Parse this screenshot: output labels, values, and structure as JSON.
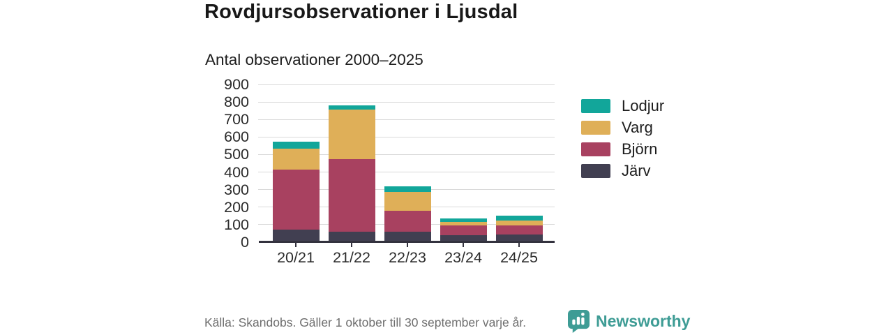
{
  "header": {
    "title": "Rovdjursobservationer i Ljusdal",
    "subtitle": "Antal observationer 2000–2025"
  },
  "chart_data": {
    "type": "bar",
    "stacked": true,
    "title": "Rovdjursobservationer i Ljusdal",
    "subtitle": "Antal observationer 2000–2025",
    "xlabel": "",
    "ylabel": "Antal observationer",
    "categories": [
      "20/21",
      "21/22",
      "22/23",
      "23/24",
      "24/25"
    ],
    "series": [
      {
        "name": "Järv",
        "color": "#413f51",
        "values": [
          70,
          60,
          60,
          40,
          45
        ]
      },
      {
        "name": "Björn",
        "color": "#a84160",
        "values": [
          345,
          415,
          120,
          55,
          50
        ]
      },
      {
        "name": "Varg",
        "color": "#dfaf58",
        "values": [
          120,
          280,
          105,
          20,
          28
        ]
      },
      {
        "name": "Lodjur",
        "color": "#12a69a",
        "values": [
          40,
          25,
          35,
          20,
          27
        ]
      }
    ],
    "totals": [
      575,
      780,
      320,
      135,
      150
    ],
    "ylim": [
      0,
      900
    ],
    "yticks": [
      0,
      100,
      200,
      300,
      400,
      500,
      600,
      700,
      800,
      900
    ],
    "grid": true,
    "legend_position": "right",
    "legend_order_top_to_bottom": [
      "Lodjur",
      "Varg",
      "Björn",
      "Järv"
    ]
  },
  "footer": {
    "source": "Källa: Skandobs. Gäller 1 oktober till 30 september varje år.",
    "brand_name": "Newsworthy",
    "brand_color": "#3e9c95",
    "logo_icon": "speech-bubble-bar-chart"
  },
  "style_colors": {
    "gridline": "#d9d9d9",
    "axis_line": "#33323e",
    "tick_text": "#2b2b2b",
    "source_text": "#6e6e6e"
  }
}
